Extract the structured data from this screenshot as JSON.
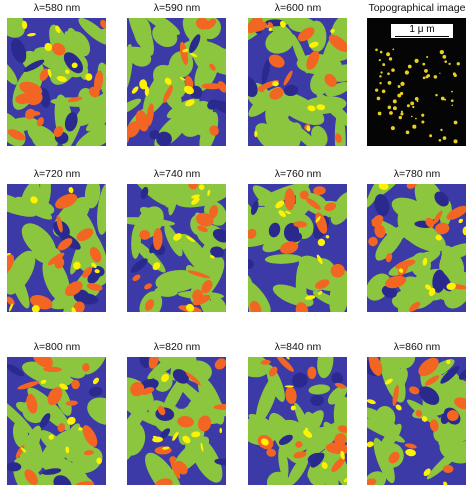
{
  "panels": [
    {
      "label": "λ=580 nm"
    },
    {
      "label": "λ=590 nm"
    },
    {
      "label": "λ=600 nm"
    },
    {
      "label": "Topographical image",
      "scale_label": "1 μ m"
    },
    {
      "label": "λ=720 nm"
    },
    {
      "label": "λ=740 nm"
    },
    {
      "label": "λ=760 nm"
    },
    {
      "label": "λ=780 nm"
    },
    {
      "label": "λ=800 nm"
    },
    {
      "label": "λ=820 nm"
    },
    {
      "label": "λ=840 nm"
    },
    {
      "label": "λ=860 nm"
    }
  ],
  "colors": {
    "deep": "#2a2a8e",
    "blue": "#3b3aa6",
    "green": "#8cc63f",
    "orange": "#f26522",
    "yellow": "#fff200",
    "topo_background": "#050505",
    "topo_feature": "#e8d020"
  }
}
